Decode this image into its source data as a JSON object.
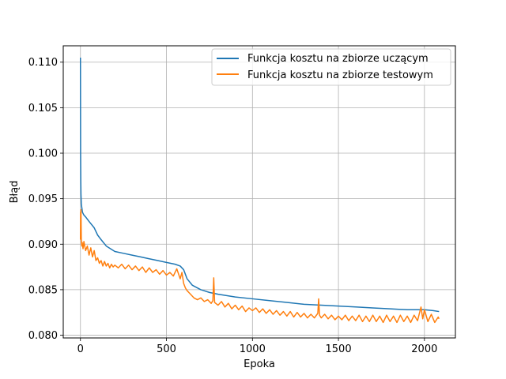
{
  "chart_data": {
    "type": "line",
    "title": "",
    "xlabel": "Epoka",
    "ylabel": "Błąd",
    "xlim": [
      -100,
      2180
    ],
    "ylim": [
      0.0797,
      0.1118
    ],
    "grid": true,
    "legend_position": "top-right",
    "x_ticks": [
      0,
      500,
      1000,
      1500,
      2000
    ],
    "y_ticks": [
      0.08,
      0.085,
      0.09,
      0.095,
      0.1,
      0.105,
      0.11
    ],
    "x_tick_labels": [
      "0",
      "500",
      "1000",
      "1500",
      "2000"
    ],
    "y_tick_labels": [
      "0.080",
      "0.085",
      "0.090",
      "0.095",
      "0.100",
      "0.105",
      "0.110"
    ],
    "series": [
      {
        "name": "Funkcja kosztu na zbiorze uczącym",
        "color": "#1f77b4",
        "x": [
          0,
          1,
          2,
          3,
          5,
          8,
          12,
          20,
          30,
          50,
          80,
          100,
          120,
          150,
          200,
          250,
          300,
          350,
          400,
          450,
          500,
          550,
          580,
          600,
          620,
          650,
          700,
          750,
          800,
          900,
          1000,
          1100,
          1200,
          1300,
          1400,
          1500,
          1600,
          1700,
          1800,
          1900,
          2000,
          2050,
          2085
        ],
        "y": [
          0.1105,
          0.1,
          0.097,
          0.0955,
          0.0945,
          0.094,
          0.0935,
          0.0932,
          0.093,
          0.0925,
          0.0918,
          0.091,
          0.0905,
          0.0898,
          0.0892,
          0.089,
          0.0888,
          0.0886,
          0.0884,
          0.0882,
          0.088,
          0.0878,
          0.0876,
          0.0872,
          0.0862,
          0.0855,
          0.085,
          0.0847,
          0.0845,
          0.0842,
          0.084,
          0.0838,
          0.0836,
          0.0834,
          0.0833,
          0.0832,
          0.0831,
          0.083,
          0.0829,
          0.0828,
          0.0828,
          0.0827,
          0.0826
        ]
      },
      {
        "name": "Funkcja kosztu na zbiorze testowym",
        "color": "#ff7f0e",
        "x": [
          0,
          1,
          2,
          3,
          5,
          8,
          10,
          15,
          20,
          30,
          40,
          50,
          60,
          70,
          80,
          90,
          100,
          110,
          120,
          130,
          140,
          150,
          160,
          170,
          180,
          190,
          200,
          220,
          240,
          260,
          280,
          300,
          320,
          340,
          360,
          380,
          400,
          420,
          440,
          460,
          480,
          500,
          520,
          540,
          560,
          580,
          590,
          600,
          610,
          620,
          630,
          640,
          650,
          660,
          680,
          700,
          720,
          740,
          760,
          770,
          775,
          780,
          800,
          820,
          840,
          860,
          880,
          900,
          920,
          940,
          960,
          980,
          1000,
          1020,
          1040,
          1060,
          1080,
          1100,
          1120,
          1140,
          1160,
          1180,
          1200,
          1220,
          1240,
          1260,
          1280,
          1300,
          1320,
          1340,
          1360,
          1380,
          1385,
          1390,
          1400,
          1420,
          1440,
          1460,
          1480,
          1500,
          1520,
          1540,
          1560,
          1580,
          1600,
          1620,
          1640,
          1660,
          1680,
          1700,
          1720,
          1740,
          1760,
          1780,
          1800,
          1820,
          1840,
          1860,
          1880,
          1900,
          1920,
          1940,
          1960,
          1980,
          1990,
          2000,
          2020,
          2040,
          2060,
          2080,
          2085
        ],
        "y": [
          0.0905,
          0.0935,
          0.0915,
          0.0938,
          0.0905,
          0.0898,
          0.0902,
          0.0895,
          0.0903,
          0.0893,
          0.0898,
          0.0888,
          0.0896,
          0.0886,
          0.0893,
          0.0882,
          0.0885,
          0.0879,
          0.0882,
          0.0876,
          0.0881,
          0.0876,
          0.0879,
          0.0874,
          0.0878,
          0.0875,
          0.0877,
          0.0874,
          0.0878,
          0.0873,
          0.0877,
          0.0872,
          0.0876,
          0.0871,
          0.0875,
          0.0869,
          0.0874,
          0.0869,
          0.0872,
          0.0867,
          0.0871,
          0.0866,
          0.0869,
          0.0865,
          0.0873,
          0.0862,
          0.0869,
          0.0857,
          0.0852,
          0.0849,
          0.0847,
          0.0845,
          0.0843,
          0.0841,
          0.0839,
          0.0841,
          0.0837,
          0.0839,
          0.0835,
          0.0838,
          0.0863,
          0.0836,
          0.0833,
          0.0837,
          0.0831,
          0.0835,
          0.0829,
          0.0833,
          0.0828,
          0.0832,
          0.0826,
          0.083,
          0.0827,
          0.083,
          0.0825,
          0.0829,
          0.0824,
          0.0828,
          0.0823,
          0.0827,
          0.0822,
          0.0826,
          0.0821,
          0.0826,
          0.082,
          0.0825,
          0.082,
          0.0824,
          0.0819,
          0.0823,
          0.0819,
          0.0824,
          0.084,
          0.0822,
          0.0819,
          0.0823,
          0.0818,
          0.0822,
          0.0817,
          0.0821,
          0.0817,
          0.0822,
          0.0816,
          0.0821,
          0.0816,
          0.0822,
          0.0815,
          0.0821,
          0.0815,
          0.0822,
          0.0815,
          0.0821,
          0.0814,
          0.0822,
          0.0815,
          0.0821,
          0.0814,
          0.0822,
          0.0815,
          0.0821,
          0.0814,
          0.0822,
          0.0816,
          0.0831,
          0.0818,
          0.0828,
          0.0815,
          0.0823,
          0.0814,
          0.082,
          0.0818
        ]
      }
    ]
  }
}
